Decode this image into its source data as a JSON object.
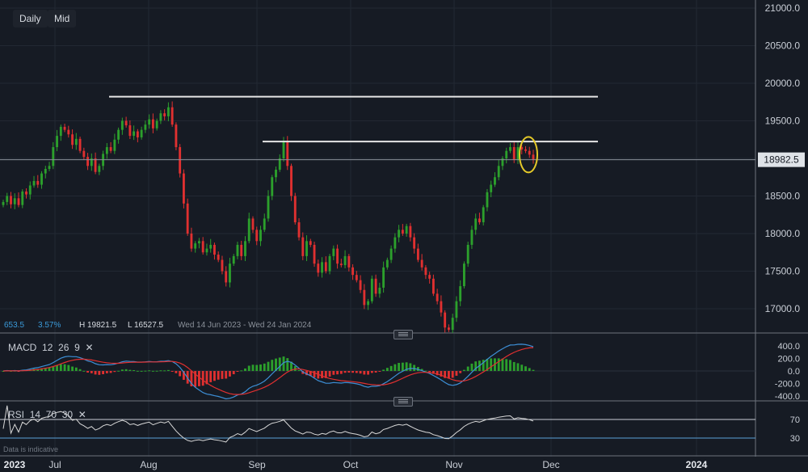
{
  "toolbar": {
    "daily_label": "Daily",
    "mid_label": "Mid"
  },
  "price_axis": {
    "ticks": [
      "21000.0",
      "20500.0",
      "20000.0",
      "19500.0",
      "19000.0",
      "18500.0",
      "18000.0",
      "17500.0",
      "17000.0"
    ],
    "current_price": "18982.5"
  },
  "info_bar": {
    "change": "653.5",
    "change_pct": "3.57%",
    "high": "H 19821.5",
    "low": "L 16527.5",
    "range": "Wed 14 Jun 2023 - Wed 24 Jan 2024"
  },
  "macd": {
    "label": "MACD",
    "p1": "12",
    "p2": "26",
    "p3": "9",
    "ticks": [
      "400.0",
      "200.0",
      "0.0",
      "-200.0",
      "-400.0"
    ]
  },
  "rsi": {
    "label": "RSI",
    "p1": "14",
    "p2": "70",
    "p3": "30",
    "ticks": [
      "70",
      "30"
    ]
  },
  "time_axis": {
    "labels": [
      "2023",
      "Jul",
      "Aug",
      "Sep",
      "Oct",
      "Nov",
      "Dec",
      "2024"
    ]
  },
  "disclaimer": "Data is indicative",
  "colors": {
    "up": "#2ca02c",
    "down": "#e03030",
    "background": "#161b24",
    "macd_line": "#3d8fd6",
    "signal_line": "#e03030",
    "resistance": "#e6e6e6",
    "highlight": "#e3c829",
    "rsi_line": "#d8d8d8"
  },
  "chart_data": {
    "type": "candlestick",
    "symbol_ranges": {
      "ylim": [
        16600,
        21100
      ]
    },
    "resistance_lines": [
      19821.5,
      19225
    ],
    "current_price": 18982.5,
    "closes": [
      18420,
      18500,
      18390,
      18470,
      18380,
      18560,
      18520,
      18640,
      18700,
      18650,
      18800,
      18860,
      18900,
      19150,
      19300,
      19420,
      19380,
      19320,
      19180,
      19260,
      19100,
      19020,
      18900,
      19000,
      18820,
      18900,
      19060,
      19150,
      19100,
      19250,
      19380,
      19500,
      19440,
      19300,
      19360,
      19280,
      19380,
      19450,
      19520,
      19400,
      19500,
      19600,
      19560,
      19680,
      19450,
      19150,
      18800,
      18400,
      18000,
      17800,
      17870,
      17900,
      17750,
      17800,
      17850,
      17720,
      17650,
      17500,
      17350,
      17600,
      17700,
      17850,
      17700,
      17900,
      18200,
      18050,
      17900,
      18050,
      18200,
      18500,
      18750,
      18850,
      19000,
      19220,
      18900,
      18500,
      18150,
      17950,
      17700,
      17900,
      17850,
      17600,
      17480,
      17620,
      17500,
      17700,
      17800,
      17600,
      17580,
      17700,
      17550,
      17450,
      17380,
      17250,
      17050,
      17100,
      17400,
      17200,
      17280,
      17550,
      17650,
      17800,
      17950,
      18050,
      18000,
      18100,
      17950,
      17800,
      17650,
      17550,
      17450,
      17400,
      17200,
      17100,
      16950,
      16750,
      16720,
      16880,
      17100,
      17300,
      17600,
      17850,
      18050,
      18200,
      18150,
      18350,
      18550,
      18650,
      18750,
      18900,
      19000,
      19100,
      19150,
      18980,
      19150,
      19120,
      19100,
      19050,
      18982.5
    ],
    "macd_range": [
      -450,
      500
    ],
    "rsi_levels": [
      70,
      30
    ],
    "x_labels": [
      "2023",
      "Jul",
      "Aug",
      "Sep",
      "Oct",
      "Nov",
      "Dec",
      "2024"
    ]
  }
}
